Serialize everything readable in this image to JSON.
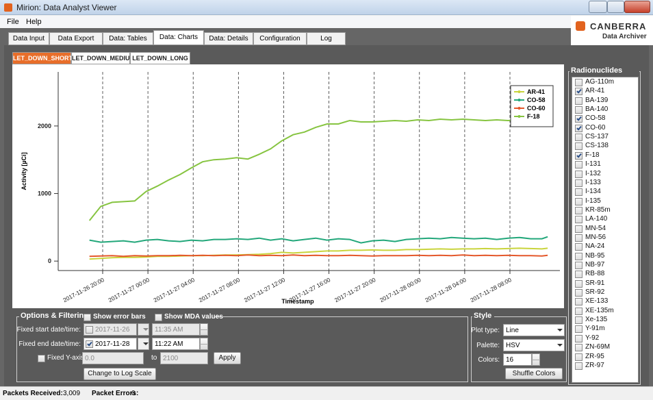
{
  "window": {
    "title": "Mirion: Data Analyst Viewer",
    "menu": [
      "File",
      "Help"
    ],
    "brand": "CANBERRA",
    "product": "Data Archiver"
  },
  "tabs": {
    "items": [
      "Data Input",
      "Data Export",
      "Data: Tables",
      "Data: Charts",
      "Data: Details",
      "Configuration",
      "Log"
    ],
    "active": 3
  },
  "subtabs": {
    "items": [
      "LET_DOWN_SHORT",
      "LET_DOWN_MEDIUM",
      "LET_DOWN_LONG"
    ],
    "active": 0
  },
  "chart_data": {
    "type": "line",
    "x_label": "Timestamp",
    "y_label": "Activity [µCi]",
    "x": [
      "2017-11-26 18:50",
      "2017-11-26 19:50",
      "2017-11-26 20:50",
      "2017-11-26 21:50",
      "2017-11-26 22:50",
      "2017-11-26 23:50",
      "2017-11-27 00:50",
      "2017-11-27 01:50",
      "2017-11-27 02:50",
      "2017-11-27 03:50",
      "2017-11-27 04:50",
      "2017-11-27 05:50",
      "2017-11-27 06:50",
      "2017-11-27 07:50",
      "2017-11-27 08:50",
      "2017-11-27 09:50",
      "2017-11-27 10:50",
      "2017-11-27 11:50",
      "2017-11-27 12:50",
      "2017-11-27 13:50",
      "2017-11-27 14:50",
      "2017-11-27 15:50",
      "2017-11-27 16:50",
      "2017-11-27 17:50",
      "2017-11-27 18:50",
      "2017-11-27 19:50",
      "2017-11-27 20:50",
      "2017-11-27 21:50",
      "2017-11-27 22:50",
      "2017-11-27 23:50",
      "2017-11-28 00:50",
      "2017-11-28 01:50",
      "2017-11-28 02:50",
      "2017-11-28 03:50",
      "2017-11-28 04:50",
      "2017-11-28 05:50",
      "2017-11-28 06:50",
      "2017-11-28 07:50",
      "2017-11-28 08:50",
      "2017-11-28 09:50",
      "2017-11-28 10:50",
      "2017-11-28 11:20"
    ],
    "series": [
      {
        "name": "AR-41",
        "color": "#c9d43c",
        "values": [
          30,
          40,
          50,
          55,
          55,
          60,
          70,
          70,
          75,
          80,
          80,
          85,
          90,
          90,
          95,
          100,
          110,
          130,
          120,
          130,
          140,
          150,
          150,
          160,
          160,
          165,
          160,
          160,
          170,
          170,
          175,
          180,
          175,
          180,
          180,
          185,
          180,
          185,
          190,
          185,
          180,
          190
        ]
      },
      {
        "name": "CO-58",
        "color": "#22a77a",
        "values": [
          310,
          280,
          290,
          300,
          280,
          310,
          320,
          300,
          290,
          310,
          300,
          320,
          320,
          330,
          320,
          340,
          310,
          330,
          300,
          320,
          340,
          310,
          330,
          320,
          270,
          300,
          310,
          290,
          320,
          330,
          340,
          330,
          350,
          340,
          330,
          340,
          320,
          340,
          350,
          330,
          330,
          360
        ]
      },
      {
        "name": "CO-60",
        "color": "#e4572a",
        "values": [
          70,
          75,
          80,
          70,
          80,
          75,
          80,
          80,
          85,
          80,
          85,
          80,
          85,
          80,
          90,
          80,
          85,
          80,
          90,
          80,
          85,
          80,
          80,
          85,
          80,
          75,
          80,
          80,
          80,
          85,
          80,
          85,
          80,
          90,
          80,
          85,
          80,
          85,
          80,
          80,
          75,
          85
        ]
      },
      {
        "name": "F-18",
        "color": "#86c440",
        "values": [
          600,
          810,
          870,
          880,
          890,
          1030,
          1110,
          1200,
          1280,
          1380,
          1470,
          1500,
          1510,
          1530,
          1510,
          1580,
          1660,
          1780,
          1870,
          1910,
          1980,
          2030,
          2030,
          2080,
          2060,
          2060,
          2070,
          2080,
          2070,
          2090,
          2080,
          2100,
          2090,
          2100,
          2090,
          2080,
          2090,
          2080,
          2090,
          2080,
          2090,
          2100
        ]
      }
    ],
    "xlim": [
      "2017-11-26 16:04",
      "2017-11-28 12:25"
    ],
    "xticks": [
      "2017-11-26 20:00",
      "2017-11-27 00:00",
      "2017-11-27 04:00",
      "2017-11-27 08:00",
      "2017-11-27 12:00",
      "2017-11-27 16:00",
      "2017-11-27 20:00",
      "2017-11-28 00:00",
      "2017-11-28 04:00",
      "2017-11-28 08:00"
    ],
    "ylim": [
      -140,
      2800
    ],
    "yticks": [
      0,
      1000,
      2000
    ],
    "grid": true,
    "legend": "upper right"
  },
  "options": {
    "title": "Options & Filtering",
    "show_error_bars": {
      "label": "Show error bars",
      "checked": false
    },
    "show_mda": {
      "label": "Show MDA values",
      "checked": false
    },
    "start": {
      "label": "Fixed start date/time:",
      "checked": false,
      "date": "2017-11-26",
      "time": "11:35 AM"
    },
    "end": {
      "label": "Fixed end date/time:",
      "checked": true,
      "date": "2017-11-28",
      "time": "11:22 AM"
    },
    "y_axis": {
      "label": "Fixed Y-axis:",
      "checked": false,
      "from": "0.0",
      "to_label": "to",
      "to": 2100,
      "apply": "Apply"
    },
    "log_button": "Change to Log Scale"
  },
  "style_panel": {
    "title": "Style",
    "plot_type": {
      "label": "Plot type:",
      "value": "Line"
    },
    "palette": {
      "label": "Palette:",
      "value": "HSV"
    },
    "colors": {
      "label": "Colors:",
      "value": 16
    },
    "shuffle": "Shuffle Colors"
  },
  "radionuclides": {
    "title": "Radionuclides",
    "items": [
      {
        "name": "AG-110m",
        "checked": false
      },
      {
        "name": "AR-41",
        "checked": true
      },
      {
        "name": "BA-139",
        "checked": false
      },
      {
        "name": "BA-140",
        "checked": false
      },
      {
        "name": "CO-58",
        "checked": true
      },
      {
        "name": "CO-60",
        "checked": true
      },
      {
        "name": "CS-137",
        "checked": false
      },
      {
        "name": "CS-138",
        "checked": false
      },
      {
        "name": "F-18",
        "checked": true
      },
      {
        "name": "I-131",
        "checked": false
      },
      {
        "name": "I-132",
        "checked": false
      },
      {
        "name": "I-133",
        "checked": false
      },
      {
        "name": "I-134",
        "checked": false
      },
      {
        "name": "I-135",
        "checked": false
      },
      {
        "name": "KR-85m",
        "checked": false
      },
      {
        "name": "LA-140",
        "checked": false
      },
      {
        "name": "MN-54",
        "checked": false
      },
      {
        "name": "MN-56",
        "checked": false
      },
      {
        "name": "NA-24",
        "checked": false
      },
      {
        "name": "NB-95",
        "checked": false
      },
      {
        "name": "NB-97",
        "checked": false
      },
      {
        "name": "RB-88",
        "checked": false
      },
      {
        "name": "SR-91",
        "checked": false
      },
      {
        "name": "SR-92",
        "checked": false
      },
      {
        "name": "XE-133",
        "checked": false
      },
      {
        "name": "XE-135m",
        "checked": false
      },
      {
        "name": "Xe-135",
        "checked": false
      },
      {
        "name": "Y-91m",
        "checked": false
      },
      {
        "name": "Y-92",
        "checked": false
      },
      {
        "name": "ZN-69M",
        "checked": false
      },
      {
        "name": "ZR-95",
        "checked": false
      },
      {
        "name": "ZR-97",
        "checked": false
      }
    ]
  },
  "status": {
    "received_label": "Packets Received:",
    "received": "3,009",
    "errors_label": "Packet Errors:",
    "errors": 0
  }
}
